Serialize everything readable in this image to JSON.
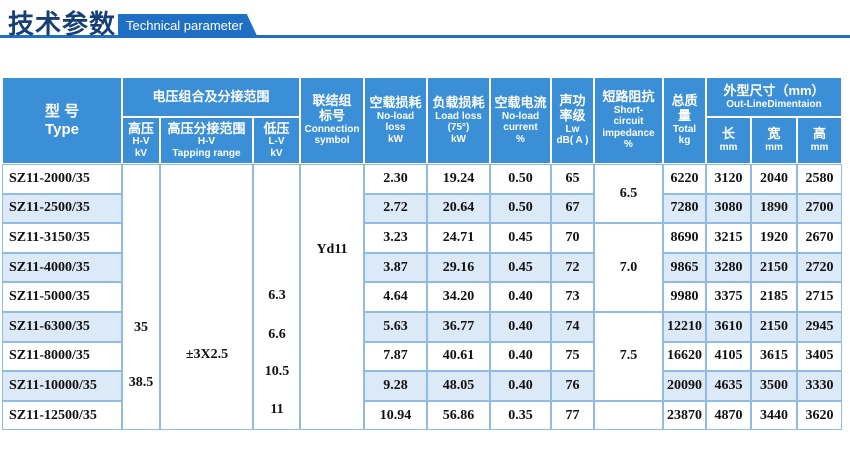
{
  "header": {
    "title": "技术参数",
    "subtitle": "Technical parameter"
  },
  "table": {
    "head": {
      "type": [
        "型 号",
        "Type"
      ],
      "voltage_group": [
        "电压组合及分接范围"
      ],
      "hv": [
        "高压",
        "H-V",
        "kV"
      ],
      "tapping": [
        "高压分接范围",
        "H-V",
        "Tapping range"
      ],
      "lv": [
        "低压",
        "L-V",
        "kV"
      ],
      "connection": [
        "联结组",
        "标号",
        "Connection",
        "symbol"
      ],
      "no_load_loss": [
        "空载损耗",
        "No-load",
        "loss",
        "kW"
      ],
      "load_loss": [
        "负载损耗",
        "Load loss",
        "(75°)",
        "kW"
      ],
      "no_load_current": [
        "空载电流",
        "No-load",
        "current",
        "%"
      ],
      "sound": [
        "声功",
        "率级",
        "Lw",
        "dB( A )"
      ],
      "impedance": [
        "短路阻抗",
        "Short-",
        "circuit",
        "impedance",
        "%"
      ],
      "weight": [
        "总质",
        "量",
        "Total",
        "kg"
      ],
      "dimensions": [
        "外型尺寸（mm）",
        "Out-LineDimentaion"
      ],
      "length": [
        "长",
        "mm"
      ],
      "width": [
        "宽",
        "mm"
      ],
      "height": [
        "高",
        "mm"
      ]
    },
    "rows": [
      [
        "SZ11-2000/35",
        "2.30",
        "19.24",
        "0.50",
        "65",
        "6220",
        "3120",
        "2040",
        "2580"
      ],
      [
        "SZ11-2500/35",
        "2.72",
        "20.64",
        "0.50",
        "67",
        "7280",
        "3080",
        "1890",
        "2700"
      ],
      [
        "SZ11-3150/35",
        "3.23",
        "24.71",
        "0.45",
        "70",
        "8690",
        "3215",
        "1920",
        "2670"
      ],
      [
        "SZ11-4000/35",
        "3.87",
        "29.16",
        "0.45",
        "72",
        "9865",
        "3280",
        "2150",
        "2720"
      ],
      [
        "SZ11-5000/35",
        "4.64",
        "34.20",
        "0.40",
        "73",
        "9980",
        "3375",
        "2185",
        "2715"
      ],
      [
        "SZ11-6300/35",
        "5.63",
        "36.77",
        "0.40",
        "74",
        "12210",
        "3610",
        "2150",
        "2945"
      ],
      [
        "SZ11-8000/35",
        "7.87",
        "40.61",
        "0.40",
        "75",
        "16620",
        "4105",
        "3615",
        "3405"
      ],
      [
        "SZ11-10000/35",
        "9.28",
        "48.05",
        "0.40",
        "76",
        "20090",
        "4635",
        "3500",
        "3330"
      ],
      [
        "SZ11-12500/35",
        "10.94",
        "56.86",
        "0.35",
        "77",
        "23870",
        "4870",
        "3440",
        "3620"
      ]
    ],
    "hv": [
      "35",
      "38.5"
    ],
    "tapping": "±3X2.5",
    "lv": [
      "6.3",
      "6.6",
      "10.5",
      "11"
    ],
    "connection": "Yd11",
    "impedance": [
      "6.5",
      "7.0",
      "7.5"
    ]
  }
}
